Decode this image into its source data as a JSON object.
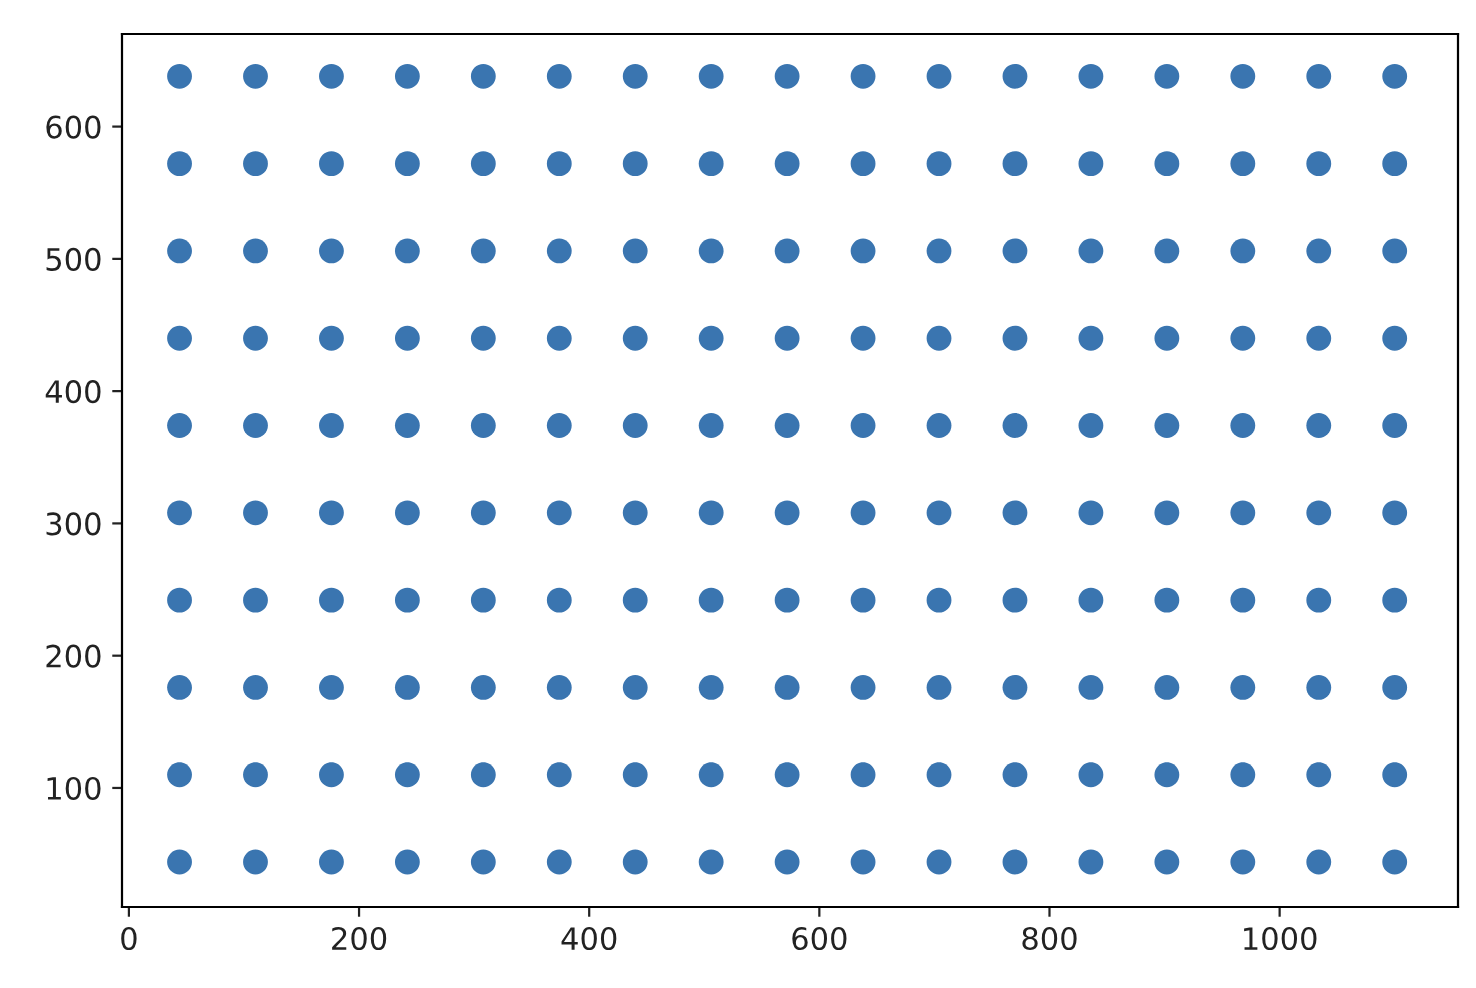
{
  "chart_data": {
    "type": "scatter",
    "series": [
      {
        "color": "#3a75b0",
        "x": [
          44,
          110,
          176,
          242,
          308,
          374,
          440,
          506,
          572,
          638,
          704,
          770,
          836,
          902,
          968,
          1034,
          1100,
          44,
          110,
          176,
          242,
          308,
          374,
          440,
          506,
          572,
          638,
          704,
          770,
          836,
          902,
          968,
          1034,
          1100,
          44,
          110,
          176,
          242,
          308,
          374,
          440,
          506,
          572,
          638,
          704,
          770,
          836,
          902,
          968,
          1034,
          1100,
          44,
          110,
          176,
          242,
          308,
          374,
          440,
          506,
          572,
          638,
          704,
          770,
          836,
          902,
          968,
          1034,
          1100,
          44,
          110,
          176,
          242,
          308,
          374,
          440,
          506,
          572,
          638,
          704,
          770,
          836,
          902,
          968,
          1034,
          1100,
          44,
          110,
          176,
          242,
          308,
          374,
          440,
          506,
          572,
          638,
          704,
          770,
          836,
          902,
          968,
          1034,
          1100,
          44,
          110,
          176,
          242,
          308,
          374,
          440,
          506,
          572,
          638,
          704,
          770,
          836,
          902,
          968,
          1034,
          1100,
          44,
          110,
          176,
          242,
          308,
          374,
          440,
          506,
          572,
          638,
          704,
          770,
          836,
          902,
          968,
          1034,
          1100,
          44,
          110,
          176,
          242,
          308,
          374,
          440,
          506,
          572,
          638,
          704,
          770,
          836,
          902,
          968,
          1034,
          1100,
          44,
          110,
          176,
          242,
          308,
          374,
          440,
          506,
          572,
          638,
          704,
          770,
          836,
          902,
          968,
          1034,
          1100
        ],
        "values": [
          638,
          638,
          638,
          638,
          638,
          638,
          638,
          638,
          638,
          638,
          638,
          638,
          638,
          638,
          638,
          638,
          638,
          572,
          572,
          572,
          572,
          572,
          572,
          572,
          572,
          572,
          572,
          572,
          572,
          572,
          572,
          572,
          572,
          572,
          506,
          506,
          506,
          506,
          506,
          506,
          506,
          506,
          506,
          506,
          506,
          506,
          506,
          506,
          506,
          506,
          506,
          440,
          440,
          440,
          440,
          440,
          440,
          440,
          440,
          440,
          440,
          440,
          440,
          440,
          440,
          440,
          440,
          440,
          374,
          374,
          374,
          374,
          374,
          374,
          374,
          374,
          374,
          374,
          374,
          374,
          374,
          374,
          374,
          374,
          374,
          308,
          308,
          308,
          308,
          308,
          308,
          308,
          308,
          308,
          308,
          308,
          308,
          308,
          308,
          308,
          308,
          308,
          242,
          242,
          242,
          242,
          242,
          242,
          242,
          242,
          242,
          242,
          242,
          242,
          242,
          242,
          242,
          242,
          242,
          176,
          176,
          176,
          176,
          176,
          176,
          176,
          176,
          176,
          176,
          176,
          176,
          176,
          176,
          176,
          176,
          176,
          110,
          110,
          110,
          110,
          110,
          110,
          110,
          110,
          110,
          110,
          110,
          110,
          110,
          110,
          110,
          110,
          110,
          44,
          44,
          44,
          44,
          44,
          44,
          44,
          44,
          44,
          44,
          44,
          44,
          44,
          44,
          44,
          44,
          44
        ]
      }
    ],
    "marker": "circle",
    "xlim": [
      -6,
      1155
    ],
    "ylim": [
      10,
      670
    ],
    "xticks": [
      0,
      200,
      400,
      600,
      800,
      1000
    ],
    "yticks": [
      100,
      200,
      300,
      400,
      500,
      600
    ],
    "grid": false
  }
}
